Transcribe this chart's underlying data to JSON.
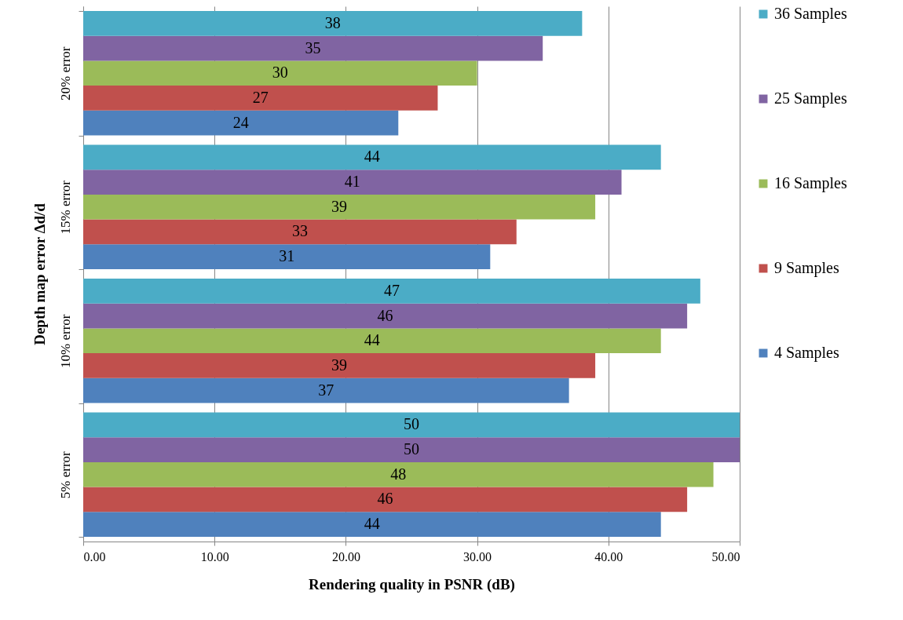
{
  "chart_data": {
    "type": "bar",
    "orientation": "horizontal",
    "xlabel": "Rendering quality in PSNR (dB)",
    "ylabel": "Depth map error Δd/d",
    "categories": [
      "20% error",
      "15% error",
      "10% error",
      "5% error"
    ],
    "series": [
      {
        "name": "4 Samples",
        "color": "#4f81bd",
        "values": [
          24,
          31,
          37,
          44
        ]
      },
      {
        "name": "9 Samples",
        "color": "#c0504d",
        "values": [
          27,
          33,
          39,
          46
        ]
      },
      {
        "name": "16 Samples",
        "color": "#9bbb59",
        "values": [
          30,
          39,
          44,
          48
        ]
      },
      {
        "name": "25 Samples",
        "color": "#8064a2",
        "values": [
          35,
          41,
          46,
          50
        ]
      },
      {
        "name": "36 Samples",
        "color": "#4bacc6",
        "values": [
          38,
          44,
          47,
          50
        ]
      }
    ],
    "xlim": [
      0,
      50
    ],
    "xticks": [
      {
        "value": 0,
        "label": "0.00"
      },
      {
        "value": 10,
        "label": "10.00"
      },
      {
        "value": 20,
        "label": "20.00"
      },
      {
        "value": 30,
        "label": "30.00"
      },
      {
        "value": 40,
        "label": "40.00"
      },
      {
        "value": 50,
        "label": "50.00"
      }
    ],
    "grid": "x",
    "legend": "right",
    "data_labels": true
  }
}
